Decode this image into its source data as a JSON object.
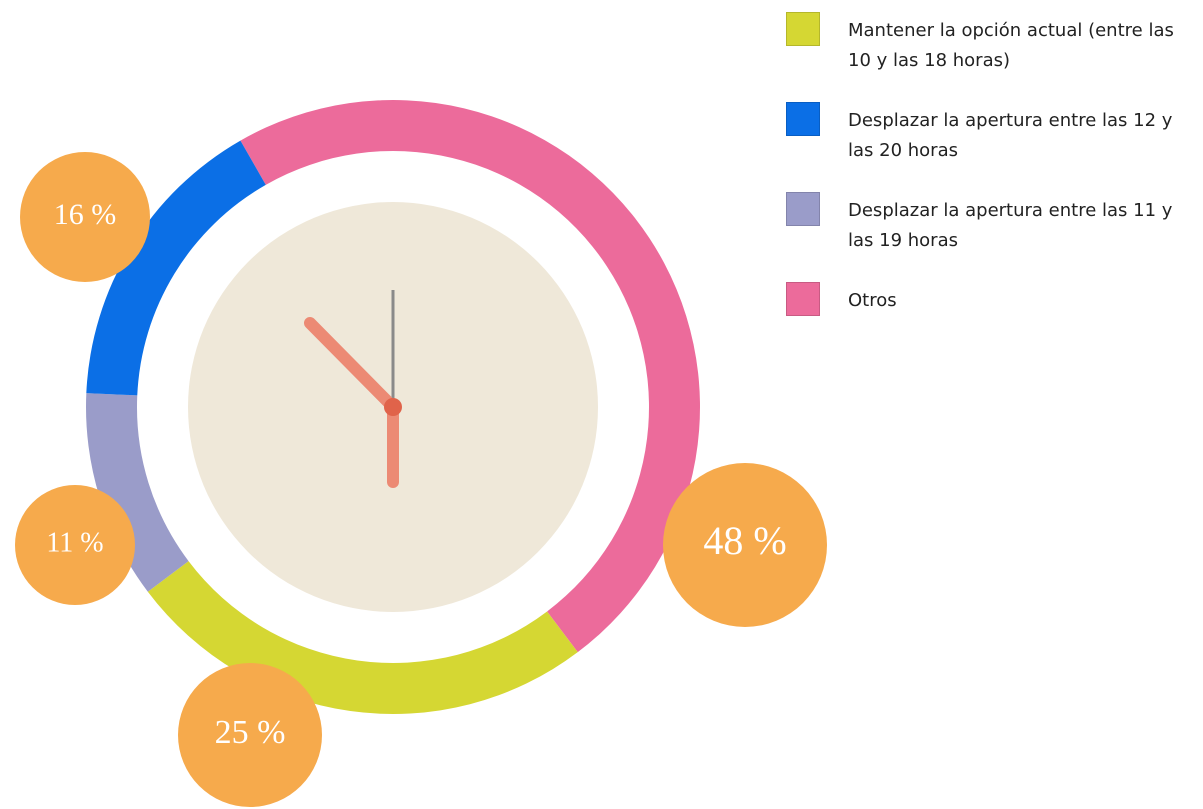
{
  "chart_data": {
    "type": "donut",
    "series": [
      {
        "name": "Mantener la opción actual (entre las 10 y las 18 horas)",
        "color": "#d5d733",
        "values": [
          25
        ],
        "value_labels": [
          "25 %"
        ]
      },
      {
        "name": "Desplazar la apertura entre las 12 y las 20 horas",
        "color": "#0b6fe6",
        "values": [
          16
        ],
        "value_labels": [
          "16 %"
        ]
      },
      {
        "name": "Desplazar la apertura entre las 11 y las 19 horas",
        "color": "#9a9cc9",
        "values": [
          11
        ],
        "value_labels": [
          "11 %"
        ]
      },
      {
        "name": "Otros",
        "color": "#ec6b9b",
        "values": [
          48
        ],
        "value_labels": [
          "48 %"
        ]
      }
    ],
    "label_color": "#f6aa4c"
  }
}
